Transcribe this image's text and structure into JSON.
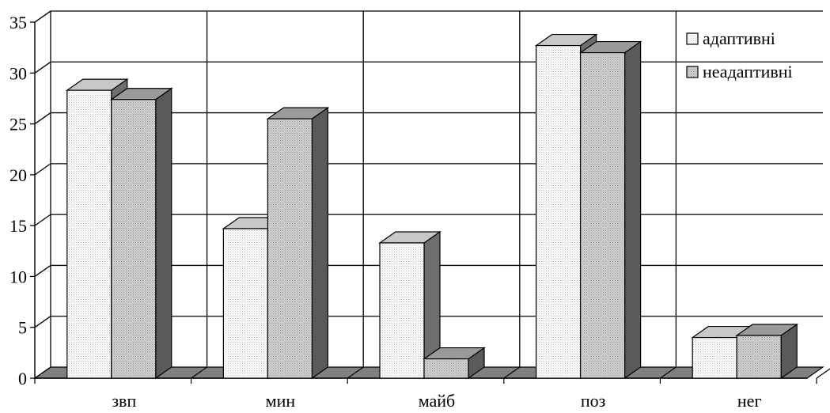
{
  "chart_data": {
    "type": "bar",
    "categories": [
      "звп",
      "мин",
      "майб",
      "поз",
      "нег"
    ],
    "series": [
      {
        "name": "адаптивні",
        "values": [
          28.3,
          14.7,
          13.3,
          32.7,
          4.0
        ]
      },
      {
        "name": "неадаптивні",
        "values": [
          27.4,
          25.5,
          1.9,
          32.0,
          4.2
        ]
      }
    ],
    "ylim": [
      0,
      35
    ],
    "yticks": [
      0,
      5,
      10,
      15,
      20,
      25,
      30,
      35
    ],
    "grid": true,
    "legend_position": "top-right",
    "title": "",
    "xlabel": "",
    "ylabel": ""
  }
}
